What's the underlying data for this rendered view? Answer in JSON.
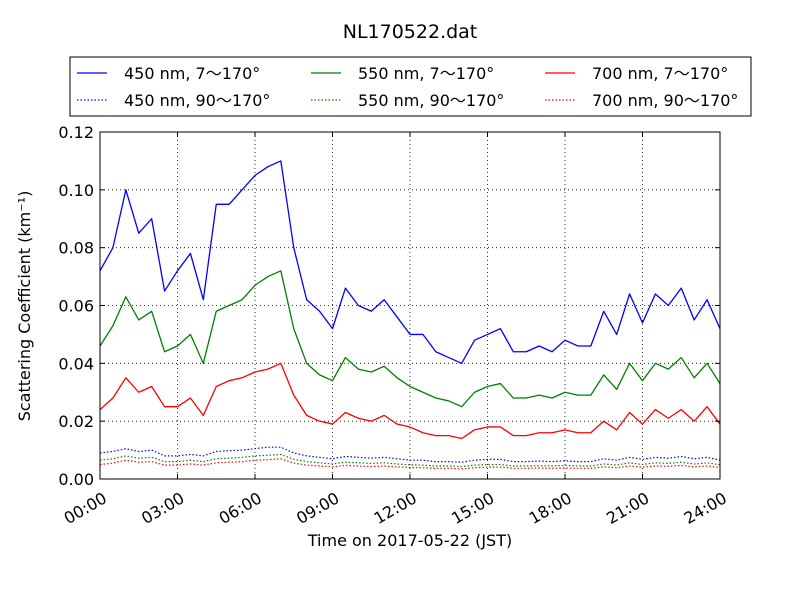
{
  "chart_data": {
    "type": "line",
    "title": "NL170522.dat",
    "xlabel": "Time on 2017-05-22 (JST)",
    "ylabel": "Scattering Coefficient (km⁻¹)",
    "x_unit": "hours",
    "xlim": [
      0,
      24
    ],
    "ylim": [
      0,
      0.12
    ],
    "xticks": [
      {
        "value": 0,
        "label": "00:00"
      },
      {
        "value": 3,
        "label": "03:00"
      },
      {
        "value": 6,
        "label": "06:00"
      },
      {
        "value": 9,
        "label": "09:00"
      },
      {
        "value": 12,
        "label": "12:00"
      },
      {
        "value": 15,
        "label": "15:00"
      },
      {
        "value": 18,
        "label": "18:00"
      },
      {
        "value": 21,
        "label": "21:00"
      },
      {
        "value": 24,
        "label": "24:00"
      }
    ],
    "yticks": [
      {
        "value": 0.0,
        "label": "0.00"
      },
      {
        "value": 0.02,
        "label": "0.02"
      },
      {
        "value": 0.04,
        "label": "0.04"
      },
      {
        "value": 0.06,
        "label": "0.06"
      },
      {
        "value": 0.08,
        "label": "0.08"
      },
      {
        "value": 0.1,
        "label": "0.10"
      },
      {
        "value": 0.12,
        "label": "0.12"
      }
    ],
    "grid": true,
    "legend_position": "top",
    "x": [
      0,
      0.5,
      1,
      1.5,
      2,
      2.5,
      3,
      3.5,
      4,
      4.5,
      5,
      5.5,
      6,
      6.5,
      7,
      7.5,
      8,
      8.5,
      9,
      9.5,
      10,
      10.5,
      11,
      11.5,
      12,
      12.5,
      13,
      13.5,
      14,
      14.5,
      15,
      15.5,
      16,
      16.5,
      17,
      17.5,
      18,
      18.5,
      19,
      19.5,
      20,
      20.5,
      21,
      21.5,
      22,
      22.5,
      23,
      23.5,
      24
    ],
    "series": [
      {
        "name": "450 nm, 7～170°",
        "color": "#0000ff",
        "dash": "solid",
        "values": [
          0.072,
          0.08,
          0.1,
          0.085,
          0.09,
          0.065,
          0.072,
          0.078,
          0.062,
          0.095,
          0.095,
          0.1,
          0.105,
          0.108,
          0.11,
          0.08,
          0.062,
          0.058,
          0.052,
          0.066,
          0.06,
          0.058,
          0.062,
          0.056,
          0.05,
          0.05,
          0.044,
          0.042,
          0.04,
          0.048,
          0.05,
          0.052,
          0.044,
          0.044,
          0.046,
          0.044,
          0.048,
          0.046,
          0.046,
          0.058,
          0.05,
          0.064,
          0.054,
          0.064,
          0.06,
          0.066,
          0.055,
          0.062,
          0.052
        ]
      },
      {
        "name": "550 nm, 7～170°",
        "color": "#008000",
        "dash": "solid",
        "values": [
          0.046,
          0.053,
          0.063,
          0.055,
          0.058,
          0.044,
          0.046,
          0.05,
          0.04,
          0.058,
          0.06,
          0.062,
          0.067,
          0.07,
          0.072,
          0.052,
          0.04,
          0.036,
          0.034,
          0.042,
          0.038,
          0.037,
          0.039,
          0.035,
          0.032,
          0.03,
          0.028,
          0.027,
          0.025,
          0.03,
          0.032,
          0.033,
          0.028,
          0.028,
          0.029,
          0.028,
          0.03,
          0.029,
          0.029,
          0.036,
          0.031,
          0.04,
          0.034,
          0.04,
          0.038,
          0.042,
          0.035,
          0.04,
          0.033
        ]
      },
      {
        "name": "700 nm, 7～170°",
        "color": "#ff0000",
        "dash": "solid",
        "values": [
          0.024,
          0.028,
          0.035,
          0.03,
          0.032,
          0.025,
          0.025,
          0.028,
          0.022,
          0.032,
          0.034,
          0.035,
          0.037,
          0.038,
          0.04,
          0.029,
          0.022,
          0.02,
          0.019,
          0.023,
          0.021,
          0.02,
          0.022,
          0.019,
          0.018,
          0.016,
          0.015,
          0.015,
          0.014,
          0.017,
          0.018,
          0.018,
          0.015,
          0.015,
          0.016,
          0.016,
          0.017,
          0.016,
          0.016,
          0.02,
          0.017,
          0.023,
          0.019,
          0.024,
          0.021,
          0.024,
          0.02,
          0.025,
          0.019
        ]
      },
      {
        "name": "450 nm, 90～170°",
        "color": "#0000ff",
        "dash": "dotted",
        "values": [
          0.009,
          0.0095,
          0.0105,
          0.0095,
          0.01,
          0.008,
          0.008,
          0.0085,
          0.008,
          0.0095,
          0.0098,
          0.01,
          0.0105,
          0.011,
          0.011,
          0.009,
          0.008,
          0.0075,
          0.007,
          0.0078,
          0.0075,
          0.0072,
          0.0075,
          0.007,
          0.0065,
          0.0065,
          0.006,
          0.006,
          0.0058,
          0.0065,
          0.0068,
          0.0068,
          0.006,
          0.006,
          0.0062,
          0.006,
          0.0063,
          0.006,
          0.006,
          0.007,
          0.0065,
          0.0075,
          0.0068,
          0.0075,
          0.0072,
          0.0078,
          0.007,
          0.0075,
          0.0065
        ]
      },
      {
        "name": "550 nm, 90～170°",
        "color": "#008000",
        "dash": "dotted",
        "values": [
          0.0065,
          0.007,
          0.008,
          0.0072,
          0.0075,
          0.006,
          0.006,
          0.0065,
          0.006,
          0.007,
          0.0072,
          0.0075,
          0.008,
          0.0082,
          0.0085,
          0.0068,
          0.006,
          0.0056,
          0.0052,
          0.0058,
          0.0056,
          0.0054,
          0.0056,
          0.0052,
          0.0049,
          0.0048,
          0.0045,
          0.0045,
          0.0043,
          0.0048,
          0.005,
          0.005,
          0.0045,
          0.0045,
          0.0046,
          0.0045,
          0.0047,
          0.0045,
          0.0045,
          0.0052,
          0.0048,
          0.0056,
          0.005,
          0.0056,
          0.0054,
          0.0058,
          0.0052,
          0.0056,
          0.0049
        ]
      },
      {
        "name": "700 nm, 90～170°",
        "color": "#ff0000",
        "dash": "dotted",
        "values": [
          0.005,
          0.0055,
          0.0065,
          0.0058,
          0.006,
          0.0048,
          0.0048,
          0.0052,
          0.0048,
          0.0056,
          0.0058,
          0.006,
          0.0065,
          0.0067,
          0.007,
          0.0055,
          0.0048,
          0.0045,
          0.0042,
          0.0047,
          0.0045,
          0.0043,
          0.0045,
          0.0042,
          0.004,
          0.0039,
          0.0037,
          0.0037,
          0.0035,
          0.0039,
          0.0041,
          0.0041,
          0.0037,
          0.0037,
          0.0038,
          0.0037,
          0.0038,
          0.0037,
          0.0037,
          0.0042,
          0.0039,
          0.0045,
          0.0041,
          0.0045,
          0.0044,
          0.0047,
          0.0042,
          0.0045,
          0.004
        ]
      }
    ],
    "legend_order": [
      0,
      1,
      2,
      3,
      4,
      5
    ]
  }
}
